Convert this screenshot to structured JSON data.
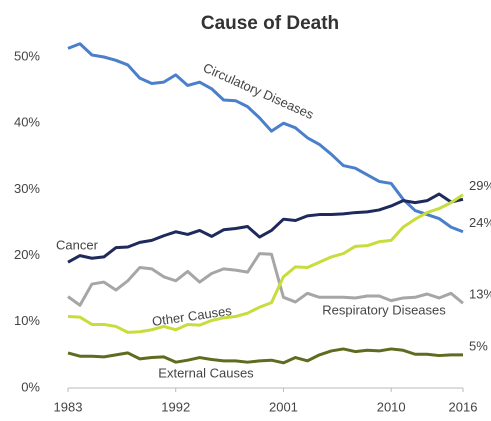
{
  "chart_data": {
    "type": "line",
    "title": "Cause of Death",
    "x": [
      1983,
      1984,
      1985,
      1986,
      1987,
      1988,
      1989,
      1990,
      1991,
      1992,
      1993,
      1994,
      1995,
      1996,
      1997,
      1998,
      1999,
      2000,
      2001,
      2002,
      2003,
      2004,
      2005,
      2006,
      2007,
      2008,
      2009,
      2010,
      2011,
      2012,
      2013,
      2014,
      2015,
      2016
    ],
    "xlim": [
      1983,
      2016
    ],
    "xticks": [
      1983,
      1992,
      2001,
      2010,
      2016
    ],
    "ylim": [
      0,
      50
    ],
    "yticks": [
      {
        "value": 0,
        "label": "0%"
      },
      {
        "value": 10,
        "label": "10%"
      },
      {
        "value": 20,
        "label": "20%"
      },
      {
        "value": 30,
        "label": "30%"
      },
      {
        "value": 40,
        "label": "40%"
      },
      {
        "value": 50,
        "label": "50%"
      }
    ],
    "grid": false,
    "series": [
      {
        "name": "Circulatory Diseases",
        "color": "#4a7fcb",
        "values": [
          51.3,
          52,
          50.3,
          50,
          49.5,
          48.8,
          46.8,
          46,
          46.2,
          47.3,
          45.7,
          46.2,
          45.2,
          43.5,
          43.4,
          42.5,
          40.8,
          38.8,
          40,
          39.3,
          37.8,
          36.8,
          35.3,
          33.6,
          33.2,
          32.2,
          31.2,
          30.9,
          28.5,
          26.8,
          26.2,
          25.6,
          24.3,
          23.6
        ],
        "value_labels": [
          null,
          null,
          null,
          null,
          null,
          null,
          null,
          null,
          null,
          null,
          null,
          null,
          null,
          null,
          null,
          null,
          null,
          null,
          null,
          null,
          null,
          null,
          null,
          null,
          null,
          null,
          null,
          null,
          null,
          null,
          null,
          null,
          null,
          "24%"
        ]
      },
      {
        "name": "Cancer",
        "color": "#1f2a5c",
        "values": [
          19,
          20,
          19.6,
          19.8,
          21.2,
          21.3,
          22,
          22.3,
          23,
          23.6,
          23.2,
          23.8,
          22.9,
          23.9,
          24.1,
          24.4,
          22.8,
          23.8,
          25.5,
          25.3,
          26,
          26.2,
          26.2,
          26.3,
          26.5,
          26.6,
          26.9,
          27.5,
          28.3,
          28,
          28.3,
          29.3,
          28.1,
          28.5
        ]
      },
      {
        "name": "Respiratory Diseases",
        "color": "#a6a6a6",
        "values": [
          13.8,
          12.5,
          15.7,
          16,
          14.8,
          16.2,
          18.2,
          18,
          16.8,
          16.2,
          17.6,
          16,
          17.3,
          18,
          17.8,
          17.5,
          20.3,
          20.2,
          13.7,
          13,
          14.3,
          13.7,
          13.7,
          13.7,
          13.6,
          13.9,
          13.9,
          13.2,
          13.6,
          13.7,
          14.2,
          13.6,
          14.3,
          12.8
        ],
        "value_labels": [
          null,
          null,
          null,
          null,
          null,
          null,
          null,
          null,
          null,
          null,
          null,
          null,
          null,
          null,
          null,
          null,
          null,
          null,
          null,
          null,
          null,
          null,
          null,
          null,
          null,
          null,
          null,
          null,
          null,
          null,
          null,
          null,
          null,
          "13%"
        ]
      },
      {
        "name": "Other Causes",
        "color": "#c8dc3c",
        "values": [
          10.8,
          10.7,
          9.6,
          9.6,
          9.3,
          8.4,
          8.5,
          8.8,
          9.3,
          8.8,
          9.6,
          9.5,
          10.2,
          10.6,
          10.8,
          11.3,
          12.2,
          12.9,
          16.8,
          18.3,
          18.2,
          19,
          19.8,
          20.3,
          21.4,
          21.5,
          22.1,
          22.3,
          24.3,
          25.5,
          26.5,
          27.1,
          28,
          29.2
        ],
        "value_labels": [
          null,
          null,
          null,
          null,
          null,
          null,
          null,
          null,
          null,
          null,
          null,
          null,
          null,
          null,
          null,
          null,
          null,
          null,
          null,
          null,
          null,
          null,
          null,
          null,
          null,
          null,
          null,
          null,
          null,
          null,
          null,
          null,
          null,
          "29%"
        ]
      },
      {
        "name": "External Causes",
        "color": "#5f6b1e",
        "values": [
          5.3,
          4.8,
          4.8,
          4.7,
          5,
          5.3,
          4.4,
          4.6,
          4.7,
          3.9,
          4.2,
          4.6,
          4.3,
          4.1,
          4.1,
          3.9,
          4.1,
          4.2,
          3.8,
          4.6,
          4.1,
          5,
          5.6,
          5.9,
          5.5,
          5.7,
          5.6,
          5.9,
          5.7,
          5.1,
          5.1,
          4.9,
          5,
          5
        ],
        "value_labels": [
          null,
          null,
          null,
          null,
          null,
          null,
          null,
          null,
          null,
          null,
          null,
          null,
          null,
          null,
          null,
          null,
          null,
          null,
          null,
          null,
          null,
          null,
          null,
          null,
          null,
          null,
          null,
          null,
          null,
          null,
          null,
          null,
          null,
          "5%"
        ]
      }
    ]
  }
}
